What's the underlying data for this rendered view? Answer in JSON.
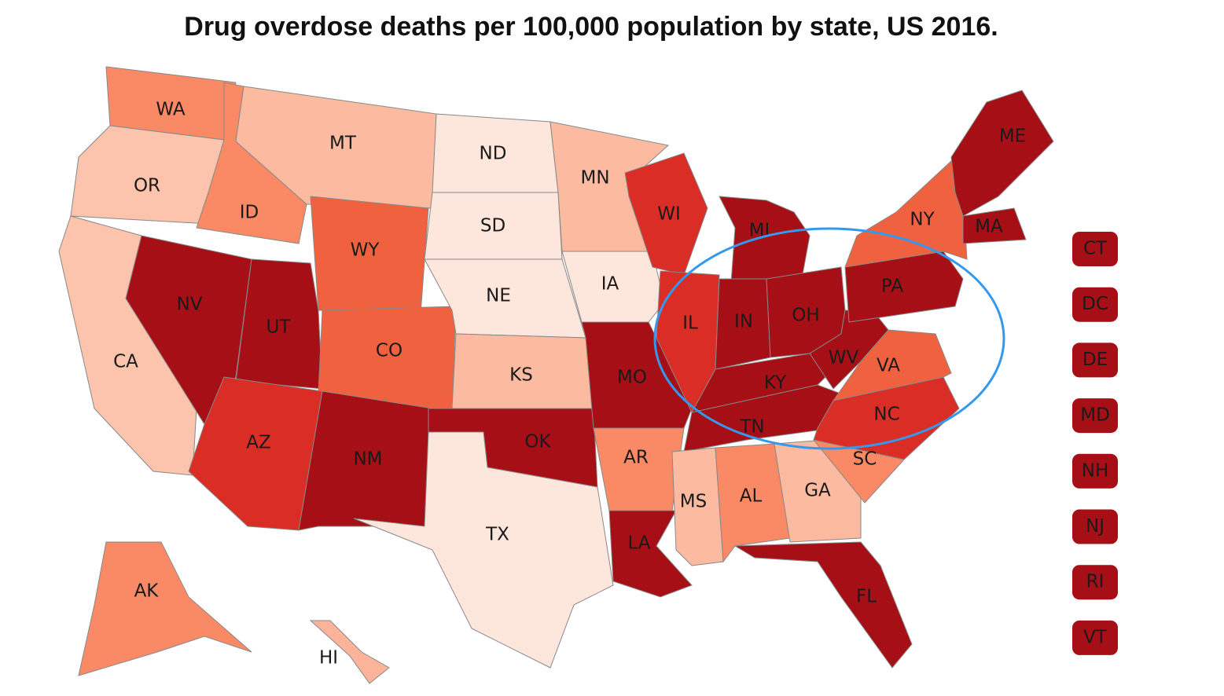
{
  "title": "Drug overdose deaths per 100,000 population by state, US 2016.",
  "states": [
    {
      "label": "WA",
      "color": "#f98a65"
    },
    {
      "label": "OR",
      "color": "#fcc4ac"
    },
    {
      "label": "CA",
      "color": "#fcc4ac"
    },
    {
      "label": "ID",
      "color": "#f98a65"
    },
    {
      "label": "MT",
      "color": "#fcbba0"
    },
    {
      "label": "WY",
      "color": "#f0623f"
    },
    {
      "label": "NV",
      "color": "#a50f15"
    },
    {
      "label": "UT",
      "color": "#a50f15"
    },
    {
      "label": "CO",
      "color": "#f0623f"
    },
    {
      "label": "AZ",
      "color": "#d92d26"
    },
    {
      "label": "NM",
      "color": "#a50f15"
    },
    {
      "label": "ND",
      "color": "#fde6dc"
    },
    {
      "label": "SD",
      "color": "#fde6dc"
    },
    {
      "label": "NE",
      "color": "#fde6dc"
    },
    {
      "label": "KS",
      "color": "#fcbba0"
    },
    {
      "label": "OK",
      "color": "#a50f15"
    },
    {
      "label": "TX",
      "color": "#fde6dc"
    },
    {
      "label": "MN",
      "color": "#fcbba0"
    },
    {
      "label": "IA",
      "color": "#fde6dc"
    },
    {
      "label": "MO",
      "color": "#a50f15"
    },
    {
      "label": "AR",
      "color": "#f98a65"
    },
    {
      "label": "LA",
      "color": "#a50f15"
    },
    {
      "label": "WI",
      "color": "#d92d26"
    },
    {
      "label": "IL",
      "color": "#d92d26"
    },
    {
      "label": "MI",
      "color": "#a50f15"
    },
    {
      "label": "IN",
      "color": "#a50f15"
    },
    {
      "label": "OH",
      "color": "#a50f15"
    },
    {
      "label": "KY",
      "color": "#a50f15"
    },
    {
      "label": "TN",
      "color": "#a50f15"
    },
    {
      "label": "MS",
      "color": "#fcbba0"
    },
    {
      "label": "AL",
      "color": "#f98a65"
    },
    {
      "label": "GA",
      "color": "#fcbba0"
    },
    {
      "label": "FL",
      "color": "#a50f15"
    },
    {
      "label": "SC",
      "color": "#f98a65"
    },
    {
      "label": "NC",
      "color": "#d92d26"
    },
    {
      "label": "VA",
      "color": "#f0623f"
    },
    {
      "label": "WV",
      "color": "#a50f15"
    },
    {
      "label": "PA",
      "color": "#a50f15"
    },
    {
      "label": "NY",
      "color": "#f0623f"
    },
    {
      "label": "ME",
      "color": "#a50f15"
    },
    {
      "label": "MA",
      "color": "#a50f15"
    },
    {
      "label": "AK",
      "color": "#f98a65"
    },
    {
      "label": "HI",
      "color": "#fbb49a"
    }
  ],
  "small_states": [
    {
      "label": "CT",
      "color": "#a50f15"
    },
    {
      "label": "DC",
      "color": "#a50f15"
    },
    {
      "label": "DE",
      "color": "#a50f15"
    },
    {
      "label": "MD",
      "color": "#a50f15"
    },
    {
      "label": "NH",
      "color": "#a50f15"
    },
    {
      "label": "NJ",
      "color": "#a50f15"
    },
    {
      "label": "RI",
      "color": "#a50f15"
    },
    {
      "label": "VT",
      "color": "#a50f15"
    }
  ]
}
